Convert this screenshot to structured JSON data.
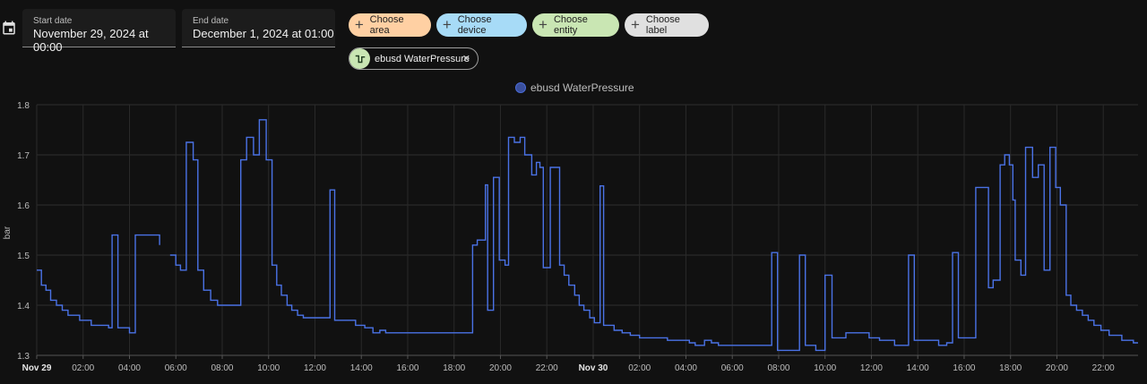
{
  "date_range": {
    "start_label": "Start date",
    "start_value": "November 29, 2024 at 00:00",
    "end_label": "End date",
    "end_value": "December 1, 2024 at 01:00"
  },
  "target_chips": {
    "area": "Choose area",
    "device": "Choose device",
    "entity": "Choose entity",
    "label": "Choose label"
  },
  "selected_entity": {
    "name": "ebusd WaterPressure",
    "icon": "waves-arrow-icon"
  },
  "colors": {
    "line": "#4a72e6",
    "chip_area": "#ffd0a3",
    "chip_device": "#a7dbf7",
    "chip_entity": "#c9e6b3",
    "chip_label": "#e0e0e0"
  },
  "chart_data": {
    "type": "line",
    "step": true,
    "ylabel": "bar",
    "ylim": [
      1.3,
      1.8
    ],
    "yticks": [
      "1.3",
      "1.4",
      "1.5",
      "1.6",
      "1.7",
      "1.8"
    ],
    "xlim": [
      0,
      47.5
    ],
    "x_unit": "hours since Nov 29 00:00",
    "xticks": [
      {
        "t": 0,
        "label": "Nov 29",
        "bold": true
      },
      {
        "t": 2,
        "label": "02:00"
      },
      {
        "t": 4,
        "label": "04:00"
      },
      {
        "t": 6,
        "label": "06:00"
      },
      {
        "t": 8,
        "label": "08:00"
      },
      {
        "t": 10,
        "label": "10:00"
      },
      {
        "t": 12,
        "label": "12:00"
      },
      {
        "t": 14,
        "label": "14:00"
      },
      {
        "t": 16,
        "label": "16:00"
      },
      {
        "t": 18,
        "label": "18:00"
      },
      {
        "t": 20,
        "label": "20:00"
      },
      {
        "t": 22,
        "label": "22:00"
      },
      {
        "t": 24,
        "label": "Nov 30",
        "bold": true
      },
      {
        "t": 26,
        "label": "02:00"
      },
      {
        "t": 28,
        "label": "04:00"
      },
      {
        "t": 30,
        "label": "06:00"
      },
      {
        "t": 32,
        "label": "08:00"
      },
      {
        "t": 34,
        "label": "10:00"
      },
      {
        "t": 36,
        "label": "12:00"
      },
      {
        "t": 38,
        "label": "14:00"
      },
      {
        "t": 40,
        "label": "16:00"
      },
      {
        "t": 42,
        "label": "18:00"
      },
      {
        "t": 44,
        "label": "20:00"
      },
      {
        "t": 46,
        "label": "22:00"
      }
    ],
    "legend": "top-center",
    "series": [
      {
        "name": "ebusd WaterPressure",
        "segments": [
          [
            [
              0,
              1.47
            ],
            [
              0.2,
              1.44
            ],
            [
              0.4,
              1.43
            ],
            [
              0.6,
              1.41
            ],
            [
              0.85,
              1.4
            ],
            [
              1.1,
              1.39
            ],
            [
              1.35,
              1.38
            ],
            [
              1.85,
              1.37
            ],
            [
              2.35,
              1.36
            ],
            [
              3.1,
              1.355
            ],
            [
              3.25,
              1.54
            ],
            [
              3.5,
              1.355
            ],
            [
              4.0,
              1.345
            ],
            [
              4.25,
              1.54
            ],
            [
              5.3,
              1.52
            ]
          ],
          [
            [
              5.75,
              1.5
            ],
            [
              6.0,
              1.48
            ],
            [
              6.2,
              1.47
            ],
            [
              6.45,
              1.725
            ],
            [
              6.75,
              1.69
            ],
            [
              6.95,
              1.47
            ],
            [
              7.2,
              1.43
            ],
            [
              7.5,
              1.41
            ],
            [
              7.8,
              1.4
            ],
            [
              8.8,
              1.69
            ],
            [
              9.05,
              1.735
            ],
            [
              9.35,
              1.7
            ],
            [
              9.6,
              1.77
            ],
            [
              9.9,
              1.69
            ],
            [
              10.15,
              1.48
            ],
            [
              10.35,
              1.44
            ],
            [
              10.55,
              1.42
            ],
            [
              10.8,
              1.4
            ],
            [
              11.0,
              1.39
            ],
            [
              11.25,
              1.38
            ],
            [
              11.5,
              1.375
            ],
            [
              12.65,
              1.63
            ],
            [
              12.85,
              1.37
            ],
            [
              13.75,
              1.36
            ],
            [
              14.15,
              1.355
            ],
            [
              14.5,
              1.345
            ],
            [
              14.8,
              1.35
            ],
            [
              15.05,
              1.345
            ],
            [
              18.8,
              1.52
            ],
            [
              19.0,
              1.53
            ],
            [
              19.35,
              1.64
            ],
            [
              19.45,
              1.39
            ],
            [
              19.7,
              1.655
            ],
            [
              19.95,
              1.49
            ],
            [
              20.2,
              1.48
            ],
            [
              20.35,
              1.735
            ],
            [
              20.6,
              1.725
            ],
            [
              20.85,
              1.735
            ],
            [
              21.05,
              1.7
            ],
            [
              21.35,
              1.66
            ],
            [
              21.55,
              1.685
            ],
            [
              21.7,
              1.675
            ],
            [
              21.85,
              1.475
            ],
            [
              22.15,
              1.675
            ],
            [
              22.55,
              1.48
            ],
            [
              22.75,
              1.46
            ],
            [
              22.95,
              1.44
            ],
            [
              23.2,
              1.42
            ],
            [
              23.4,
              1.4
            ],
            [
              23.6,
              1.39
            ],
            [
              23.85,
              1.375
            ],
            [
              24.05,
              1.365
            ],
            [
              24.3,
              1.638
            ],
            [
              24.45,
              1.36
            ],
            [
              24.9,
              1.35
            ],
            [
              25.25,
              1.345
            ],
            [
              25.6,
              1.34
            ],
            [
              26.0,
              1.335
            ],
            [
              27.2,
              1.33
            ],
            [
              28.15,
              1.325
            ],
            [
              28.4,
              1.32
            ],
            [
              28.8,
              1.33
            ],
            [
              29.1,
              1.325
            ],
            [
              29.4,
              1.32
            ],
            [
              31.7,
              1.505
            ],
            [
              31.95,
              1.31
            ],
            [
              32.9,
              1.5
            ],
            [
              33.15,
              1.32
            ],
            [
              33.6,
              1.31
            ],
            [
              34.0,
              1.46
            ],
            [
              34.3,
              1.335
            ],
            [
              34.9,
              1.345
            ],
            [
              35.9,
              1.335
            ],
            [
              36.35,
              1.33
            ],
            [
              37.0,
              1.32
            ],
            [
              37.6,
              1.5
            ],
            [
              37.85,
              1.33
            ],
            [
              38.9,
              1.32
            ],
            [
              39.25,
              1.325
            ],
            [
              39.5,
              1.505
            ],
            [
              39.75,
              1.335
            ],
            [
              40.5,
              1.635
            ],
            [
              41.05,
              1.435
            ],
            [
              41.25,
              1.45
            ],
            [
              41.55,
              1.68
            ],
            [
              41.75,
              1.7
            ],
            [
              41.95,
              1.68
            ],
            [
              42.1,
              1.61
            ],
            [
              42.2,
              1.49
            ],
            [
              42.45,
              1.46
            ],
            [
              42.65,
              1.715
            ],
            [
              42.95,
              1.655
            ],
            [
              43.2,
              1.68
            ],
            [
              43.45,
              1.47
            ],
            [
              43.7,
              1.715
            ],
            [
              43.95,
              1.635
            ],
            [
              44.15,
              1.6
            ],
            [
              44.4,
              1.42
            ],
            [
              44.6,
              1.4
            ],
            [
              44.85,
              1.39
            ],
            [
              45.1,
              1.38
            ],
            [
              45.35,
              1.37
            ],
            [
              45.6,
              1.36
            ],
            [
              45.9,
              1.35
            ],
            [
              46.25,
              1.34
            ],
            [
              46.8,
              1.33
            ],
            [
              47.3,
              1.325
            ],
            [
              47.5,
              1.325
            ]
          ]
        ]
      }
    ]
  }
}
